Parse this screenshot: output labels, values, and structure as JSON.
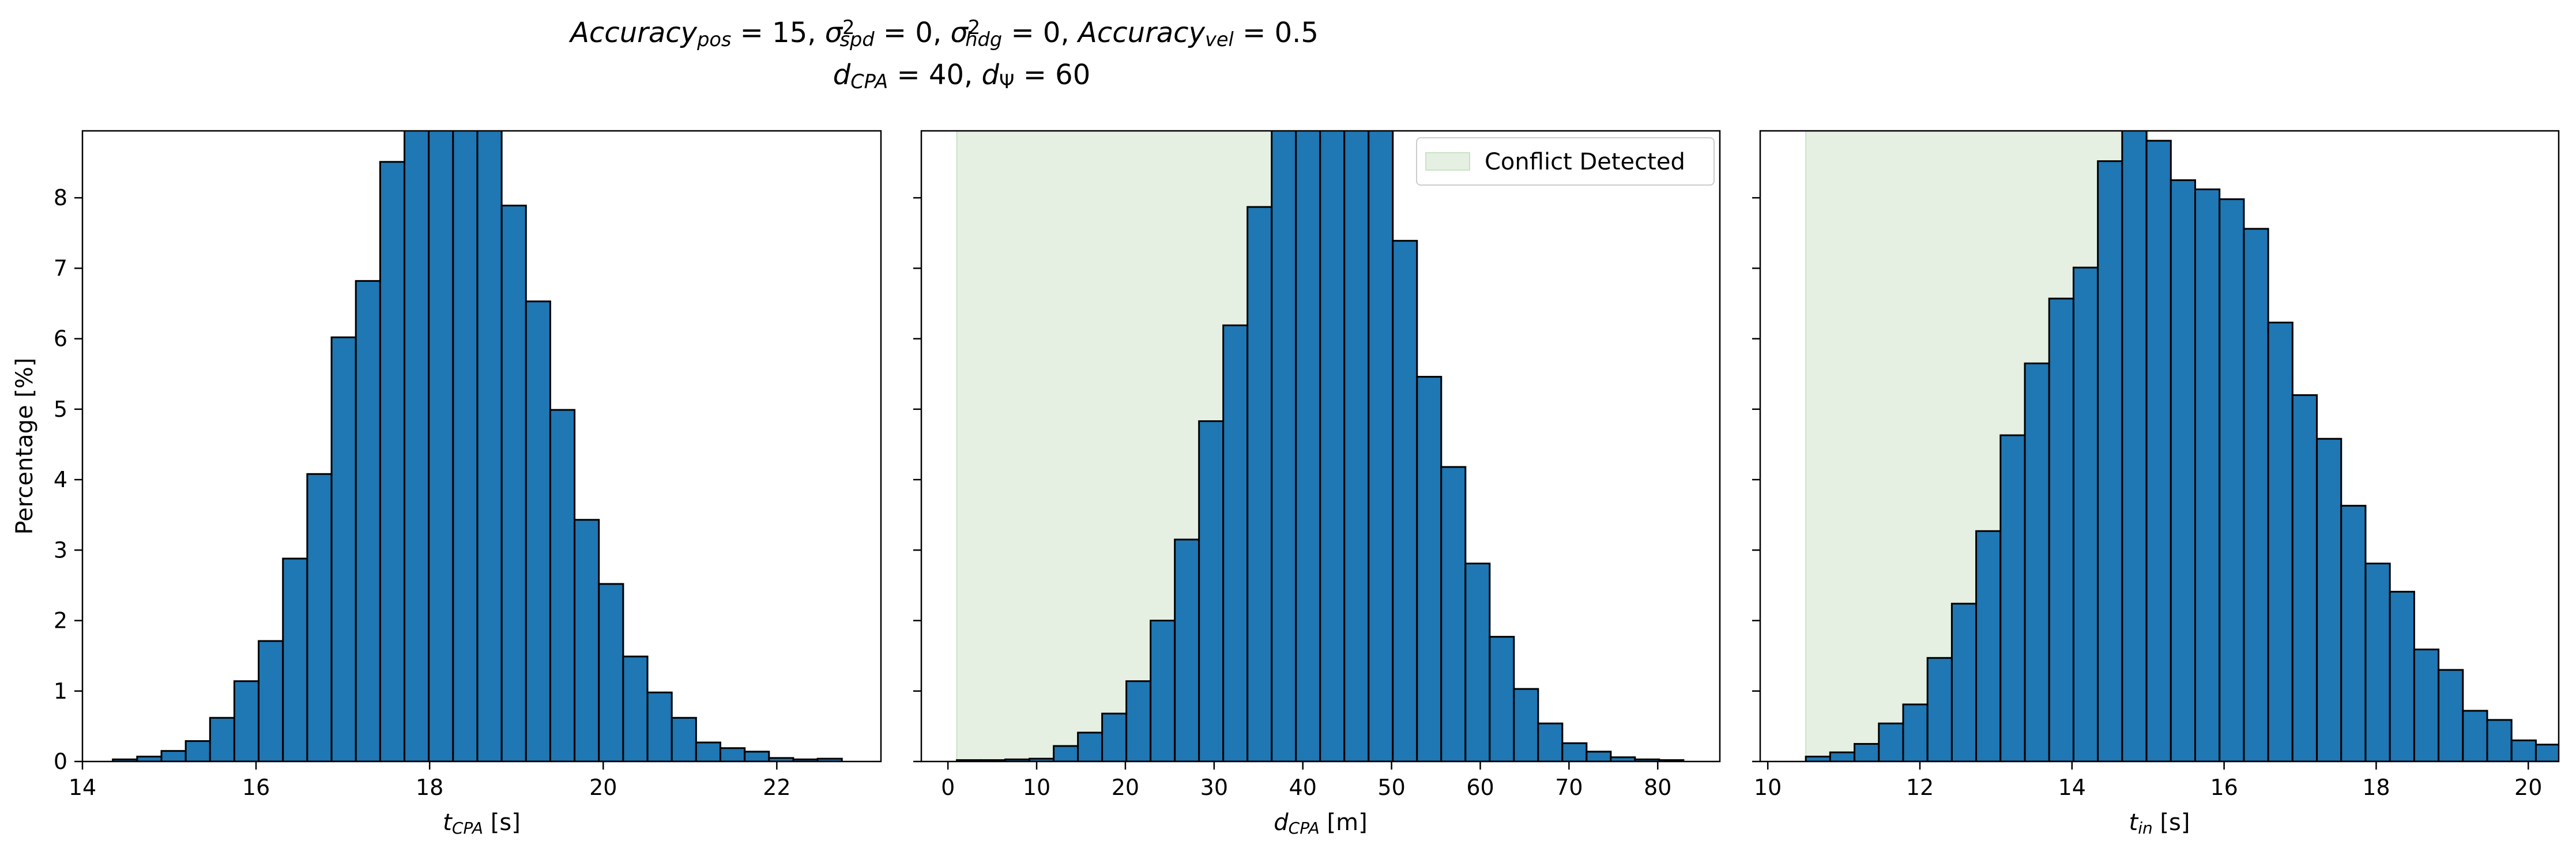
{
  "title": {
    "line1": [
      {
        "t": "Accuracy",
        "it": true
      },
      {
        "t": "pos",
        "it": true,
        "sub": true
      },
      {
        "t": " = 15, "
      },
      {
        "t": "σ",
        "it": true
      },
      {
        "t": "2",
        "sup": true
      },
      {
        "t": "spd",
        "it": true,
        "sub": true,
        "back": true
      },
      {
        "t": " = 0, "
      },
      {
        "t": "σ",
        "it": true
      },
      {
        "t": "2",
        "sup": true
      },
      {
        "t": "hdg",
        "it": true,
        "sub": true,
        "back": true
      },
      {
        "t": " = 0, "
      },
      {
        "t": "Accuracy",
        "it": true
      },
      {
        "t": "vel",
        "it": true,
        "sub": true
      },
      {
        "t": " = 0.5"
      }
    ],
    "line2": [
      {
        "t": "d",
        "it": true
      },
      {
        "t": "CPA",
        "it": true,
        "sub": true
      },
      {
        "t": " = 40, "
      },
      {
        "t": "d",
        "it": true
      },
      {
        "t": "Ψ",
        "sub": true
      },
      {
        "t": " = 60"
      }
    ]
  },
  "colors": {
    "bar_fill": "#1f77b4",
    "bar_edge": "#000000",
    "shade": "#e5f0e2",
    "shade_edge": "#c9e2c6"
  },
  "chart_data": [
    {
      "type": "bar",
      "ylabel": "Percentage [%]",
      "xlabel_parts": [
        {
          "t": "t",
          "it": true
        },
        {
          "t": "CPA",
          "it": true,
          "sub": true
        },
        {
          "t": " [s]"
        }
      ],
      "xlim": [
        14.0,
        23.2
      ],
      "ylim": [
        0,
        8.95
      ],
      "xticks": [
        14,
        16,
        18,
        20,
        22
      ],
      "yticks": [
        0,
        1,
        2,
        3,
        4,
        5,
        6,
        7,
        8
      ],
      "bin_start": 14.35,
      "bin_width": 0.28,
      "values": [
        0.03,
        0.07,
        0.15,
        0.29,
        0.62,
        1.14,
        1.71,
        2.88,
        4.08,
        6.02,
        6.82,
        8.51,
        9.8,
        10.5,
        10.3,
        9.6,
        7.89,
        6.53,
        4.99,
        3.43,
        2.52,
        1.49,
        0.98,
        0.62,
        0.27,
        0.19,
        0.14,
        0.05,
        0.03,
        0.04
      ],
      "shaded_region": null,
      "legend": null
    },
    {
      "type": "bar",
      "ylabel": "",
      "xlabel_parts": [
        {
          "t": "d",
          "it": true
        },
        {
          "t": "CPA",
          "it": true,
          "sub": true
        },
        {
          "t": " [m]"
        }
      ],
      "xlim": [
        -3,
        87
      ],
      "ylim": [
        0,
        8.95
      ],
      "xticks": [
        0,
        10,
        20,
        30,
        40,
        50,
        60,
        70,
        80
      ],
      "yticks": [
        0,
        1,
        2,
        3,
        4,
        5,
        6,
        7,
        8
      ],
      "bin_start": 1.0,
      "bin_width": 2.73,
      "values": [
        0.02,
        0.02,
        0.03,
        0.04,
        0.22,
        0.41,
        0.68,
        1.14,
        2.0,
        3.15,
        4.83,
        6.19,
        7.87,
        9.5,
        10.2,
        10.4,
        10.0,
        9.1,
        7.39,
        5.46,
        4.18,
        2.81,
        1.77,
        1.03,
        0.54,
        0.26,
        0.14,
        0.06,
        0.03,
        0.02
      ],
      "shaded_region": [
        1.0,
        50.0
      ],
      "legend": {
        "label": "Conflict Detected",
        "position": "upper right"
      }
    },
    {
      "type": "bar",
      "ylabel": "",
      "xlabel_parts": [
        {
          "t": "t",
          "it": true
        },
        {
          "t": "in",
          "it": true,
          "sub": true
        },
        {
          "t": " [s]"
        }
      ],
      "xlim": [
        9.9,
        20.4
      ],
      "ylim": [
        0,
        8.95
      ],
      "xticks": [
        10,
        12,
        14,
        16,
        18,
        20
      ],
      "yticks": [
        0,
        1,
        2,
        3,
        4,
        5,
        6,
        7,
        8
      ],
      "bin_start": 10.5,
      "bin_width": 0.32,
      "values": [
        0.07,
        0.13,
        0.25,
        0.54,
        0.81,
        1.47,
        2.24,
        3.27,
        4.63,
        5.65,
        6.57,
        7.01,
        8.52,
        9.5,
        8.81,
        8.25,
        8.12,
        7.98,
        7.56,
        6.23,
        5.2,
        4.58,
        3.63,
        2.81,
        2.41,
        1.59,
        1.3,
        0.72,
        0.59,
        0.3,
        0.24,
        0.14,
        0.05
      ],
      "shaded_region": [
        10.5,
        15.0
      ],
      "legend": null
    }
  ]
}
